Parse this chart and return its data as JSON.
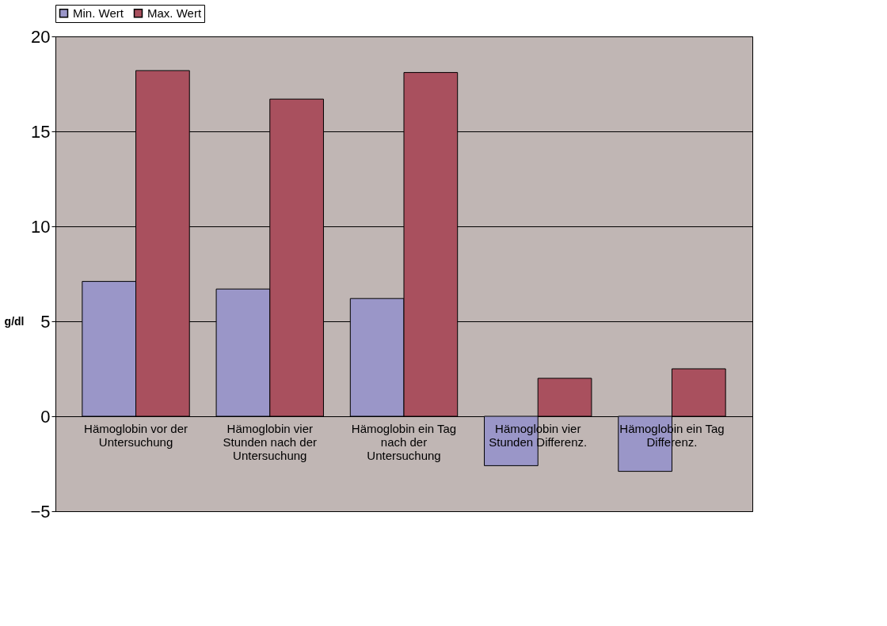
{
  "chart_data": {
    "type": "bar",
    "ylabel": "g/dl",
    "categories": [
      "Hämoglobin vor der Untersuchung",
      "Hämoglobin vier Stunden nach der Untersuchung",
      "Hämoglobin ein Tag nach der Untersuchung",
      "Hämoglobin vier Stunden Differenz.",
      "Hämoglobin ein Tag Differenz."
    ],
    "series": [
      {
        "name": "Min. Wert",
        "color": "#9a96c8",
        "values": [
          7.1,
          6.7,
          6.2,
          -2.6,
          -2.9
        ]
      },
      {
        "name": "Max. Wert",
        "color": "#a9505e",
        "values": [
          18.2,
          16.7,
          18.1,
          2.0,
          2.5
        ]
      }
    ],
    "ylim": [
      -5,
      20
    ],
    "yticks": [
      -5,
      0,
      5,
      10,
      15,
      20
    ],
    "grid": "y",
    "legend": "top"
  }
}
